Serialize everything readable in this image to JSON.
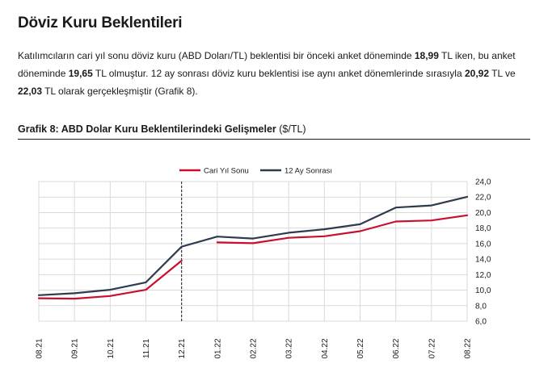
{
  "heading": "Döviz Kuru Beklentileri",
  "paragraph": {
    "p1": "Katılımcıların cari yıl sonu döviz kuru (ABD Doları/TL) beklentisi bir önceki anket döneminde ",
    "v1": "18,99",
    "p2": " TL iken, bu anket döneminde ",
    "v2": "19,65",
    "p3": " TL olmuştur. 12 ay sonrası döviz kuru beklentisi ise aynı anket dönemlerinde sırasıyla ",
    "v3": "20,92",
    "p4": " TL ve ",
    "v4": "22,03",
    "p5": " TL olarak gerçekleşmiştir (Grafik 8)."
  },
  "chart_title": {
    "bold": "Grafik 8: ABD Dolar Kuru Beklentilerindeki Gelişmeler",
    "unit": " ($/TL)"
  },
  "chart_data": {
    "type": "line",
    "categories": [
      "08.21",
      "09.21",
      "10.21",
      "11.21",
      "12.21",
      "01.22",
      "02.22",
      "03.22",
      "04.22",
      "05.22",
      "06.22",
      "07.22",
      "08.22"
    ],
    "series": [
      {
        "name": "Cari Yıl Sonu",
        "color": "#c8102e",
        "segments": [
          {
            "start": 0,
            "values": [
              8.95,
              8.9,
              9.25,
              10.05,
              13.8
            ]
          },
          {
            "start": 5,
            "values": [
              16.15,
              16.05,
              16.75,
              16.95,
              17.6,
              18.85,
              18.99,
              19.65
            ]
          }
        ]
      },
      {
        "name": "12 Ay Sonrası",
        "color": "#2e3a4d",
        "segments": [
          {
            "start": 0,
            "values": [
              9.35,
              9.6,
              10.05,
              11.0,
              15.6,
              16.9,
              16.65,
              17.4,
              17.85,
              18.5,
              20.65,
              20.92,
              22.03
            ]
          }
        ]
      }
    ],
    "y_ticks": [
      "6,0",
      "8,0",
      "10,0",
      "12,0",
      "14,0",
      "16,0",
      "18,0",
      "20,0",
      "22,0",
      "24,0"
    ],
    "ylim": [
      6,
      24
    ],
    "y_axis_side": "right",
    "grid": true,
    "legend_position": "top-center",
    "vertical_marker_category": "12.21"
  }
}
